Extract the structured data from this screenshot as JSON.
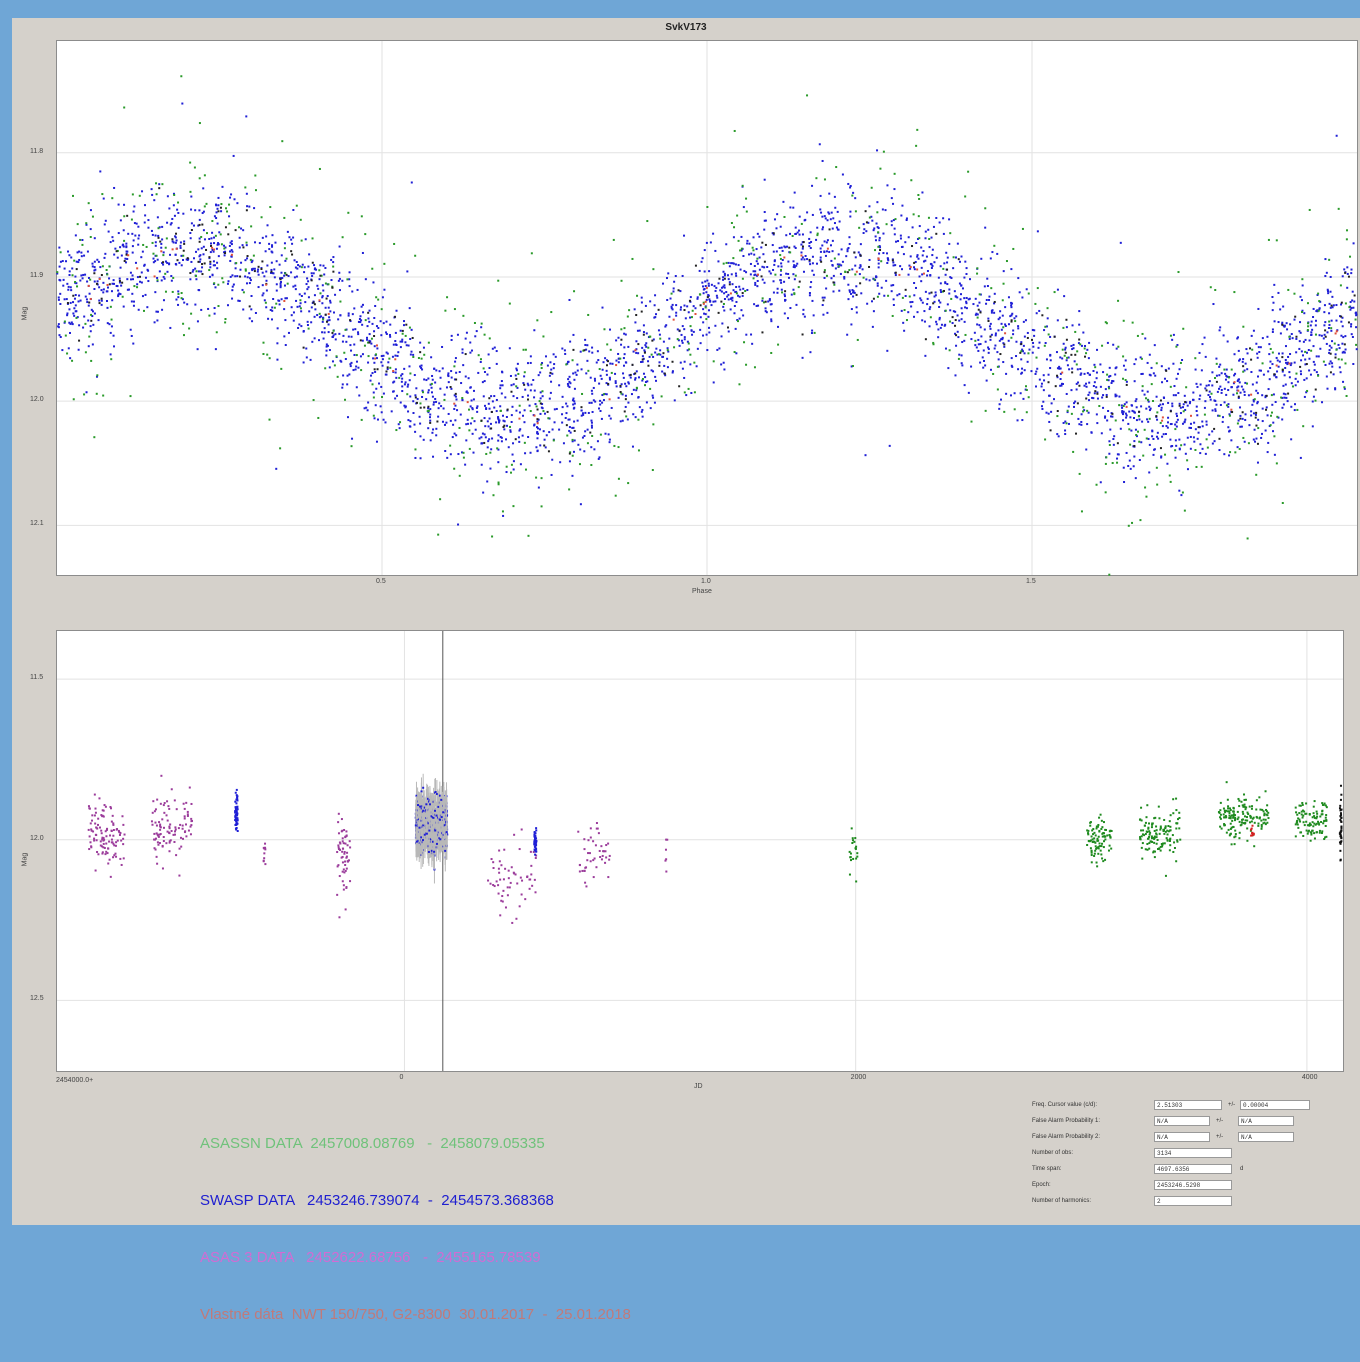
{
  "window": {
    "background": "#6fa6d6",
    "panel_background": "#d5d1cb"
  },
  "chart_data": [
    {
      "type": "scatter",
      "title": "SvkV173",
      "xlabel": "Phase",
      "ylabel": "Mag",
      "xlim": [
        0.0,
        2.0
      ],
      "ylim": [
        12.14,
        11.71
      ],
      "y_inverted": true,
      "x_ticks": [
        "0.5",
        "1.0",
        "1.5"
      ],
      "y_ticks": [
        "11.8",
        "11.9",
        "12.0",
        "12.1"
      ],
      "grid": true,
      "model": {
        "mean": 11.945,
        "amplitude": 0.065,
        "max_phase": 0.2
      },
      "series": [
        {
          "name": "SWASP",
          "color": "#1f1fd6",
          "count": 3200,
          "scatter": 0.026
        },
        {
          "name": "ASASSN",
          "color": "#2a9a2a",
          "count": 700,
          "scatter": 0.05
        },
        {
          "name": "ASAS 3",
          "color": "#222222",
          "count": 300,
          "scatter": 0.02
        },
        {
          "name": "Vlastné dáta",
          "color": "#e0503a",
          "count": 60,
          "scatter": 0.008
        }
      ]
    },
    {
      "type": "scatter",
      "ylabel": "Mag",
      "xlabel": "JD",
      "x_offset_label": "2454000.0+",
      "xlim": [
        -1540,
        4160
      ],
      "ylim": [
        11.35,
        12.72
      ],
      "y_inverted": true,
      "x_ticks": [
        "0",
        "2000",
        "4000"
      ],
      "y_ticks": [
        "11.5",
        "12.0",
        "12.5"
      ],
      "x_mid_label": "JD",
      "grid": true,
      "clusters": [
        {
          "series": "ASAS 3",
          "color": "#9b3c9b",
          "center": -1320,
          "spread": 80,
          "mag": 11.99,
          "scatter": 0.05,
          "count": 110
        },
        {
          "series": "ASAS 3",
          "color": "#9b3c9b",
          "center": -1030,
          "spread": 90,
          "mag": 11.97,
          "scatter": 0.05,
          "count": 100
        },
        {
          "series": "ASAS 3",
          "color": "#9b3c9b",
          "center": -620,
          "spread": 6,
          "mag": 12.05,
          "scatter": 0.04,
          "count": 10
        },
        {
          "series": "ASAS 3",
          "color": "#9b3c9b",
          "center": -270,
          "spread": 30,
          "mag": 12.05,
          "scatter": 0.07,
          "count": 60
        },
        {
          "series": "ASAS 3",
          "color": "#9b3c9b",
          "center": 480,
          "spread": 110,
          "mag": 12.13,
          "scatter": 0.07,
          "count": 60
        },
        {
          "series": "ASAS 3",
          "color": "#9b3c9b",
          "center": 840,
          "spread": 70,
          "mag": 12.04,
          "scatter": 0.05,
          "count": 45
        },
        {
          "series": "ASAS 3",
          "color": "#9b3c9b",
          "center": 1160,
          "spread": 5,
          "mag": 12.02,
          "scatter": 0.03,
          "count": 6
        },
        {
          "series": "SWASP",
          "color": "#1f1fd6",
          "center": -745,
          "spread": 6,
          "mag": 11.92,
          "scatter": 0.025,
          "count": 60
        },
        {
          "series": "SWASP",
          "color": "#1f1fd6",
          "center": 120,
          "spread": 70,
          "mag": 11.95,
          "scatter": 0.04,
          "count": 500
        },
        {
          "series": "SWASP",
          "color": "#1f1fd6",
          "center": 580,
          "spread": 5,
          "mag": 12.0,
          "scatter": 0.02,
          "count": 40
        },
        {
          "series": "ASASSN",
          "color": "#1e8a1e",
          "center": 1990,
          "spread": 20,
          "mag": 12.04,
          "scatter": 0.04,
          "count": 20
        },
        {
          "series": "ASASSN",
          "color": "#1e8a1e",
          "center": 3080,
          "spread": 55,
          "mag": 12.0,
          "scatter": 0.04,
          "count": 90
        },
        {
          "series": "ASASSN",
          "color": "#1e8a1e",
          "center": 3350,
          "spread": 90,
          "mag": 11.98,
          "scatter": 0.035,
          "count": 130
        },
        {
          "series": "ASASSN",
          "color": "#1e8a1e",
          "center": 3720,
          "spread": 110,
          "mag": 11.93,
          "scatter": 0.035,
          "count": 150
        },
        {
          "series": "ASASSN",
          "color": "#1e8a1e",
          "center": 4020,
          "spread": 70,
          "mag": 11.94,
          "scatter": 0.03,
          "count": 100
        },
        {
          "series": "Vlastné dáta",
          "color": "#d42020",
          "center": 3760,
          "spread": 10,
          "mag": 11.98,
          "scatter": 0.01,
          "count": 10
        },
        {
          "series": "Vlastné dáta",
          "color": "#111111",
          "center": 4150,
          "spread": 4,
          "mag": 11.96,
          "scatter": 0.05,
          "count": 40
        }
      ]
    }
  ],
  "legend": [
    {
      "name": "ASASSN DATA",
      "range": "2457008.08769   -  2458079.05335",
      "color": "#6fc27a"
    },
    {
      "name": "SWASP DATA",
      "range": "2453246.739074  -  2454573.368368",
      "color": "#2020d0"
    },
    {
      "name": "ASAS 3 DATA",
      "range": "2452622.68756   -  2455165.78539",
      "color": "#d36bd3"
    },
    {
      "name": "Vlastné dáta",
      "range": "NWT 150/750, G2-8300  30.01.2017  -  25.01.2018",
      "color": "#c07a7a"
    }
  ],
  "form": {
    "freq_label": "Freq. Cursor value (c/d):",
    "freq_value": "2.51303",
    "freq_err": "0.00004",
    "fap1_label": "False Alarm Probability 1:",
    "fap1_value": "N/A",
    "fap1_err": "N/A",
    "fap2_label": "False Alarm Probability 2:",
    "fap2_value": "N/A",
    "fap2_err": "N/A",
    "pm": "+/-",
    "nobs_label": "Number of obs:",
    "nobs_value": "3134",
    "span_label": "Time span:",
    "span_value": "4697.6356",
    "span_unit": "d",
    "epoch_label": "Epoch:",
    "epoch_value": "2453246.5298",
    "nharm_label": "Number of harmonics:",
    "nharm_value": "2"
  }
}
